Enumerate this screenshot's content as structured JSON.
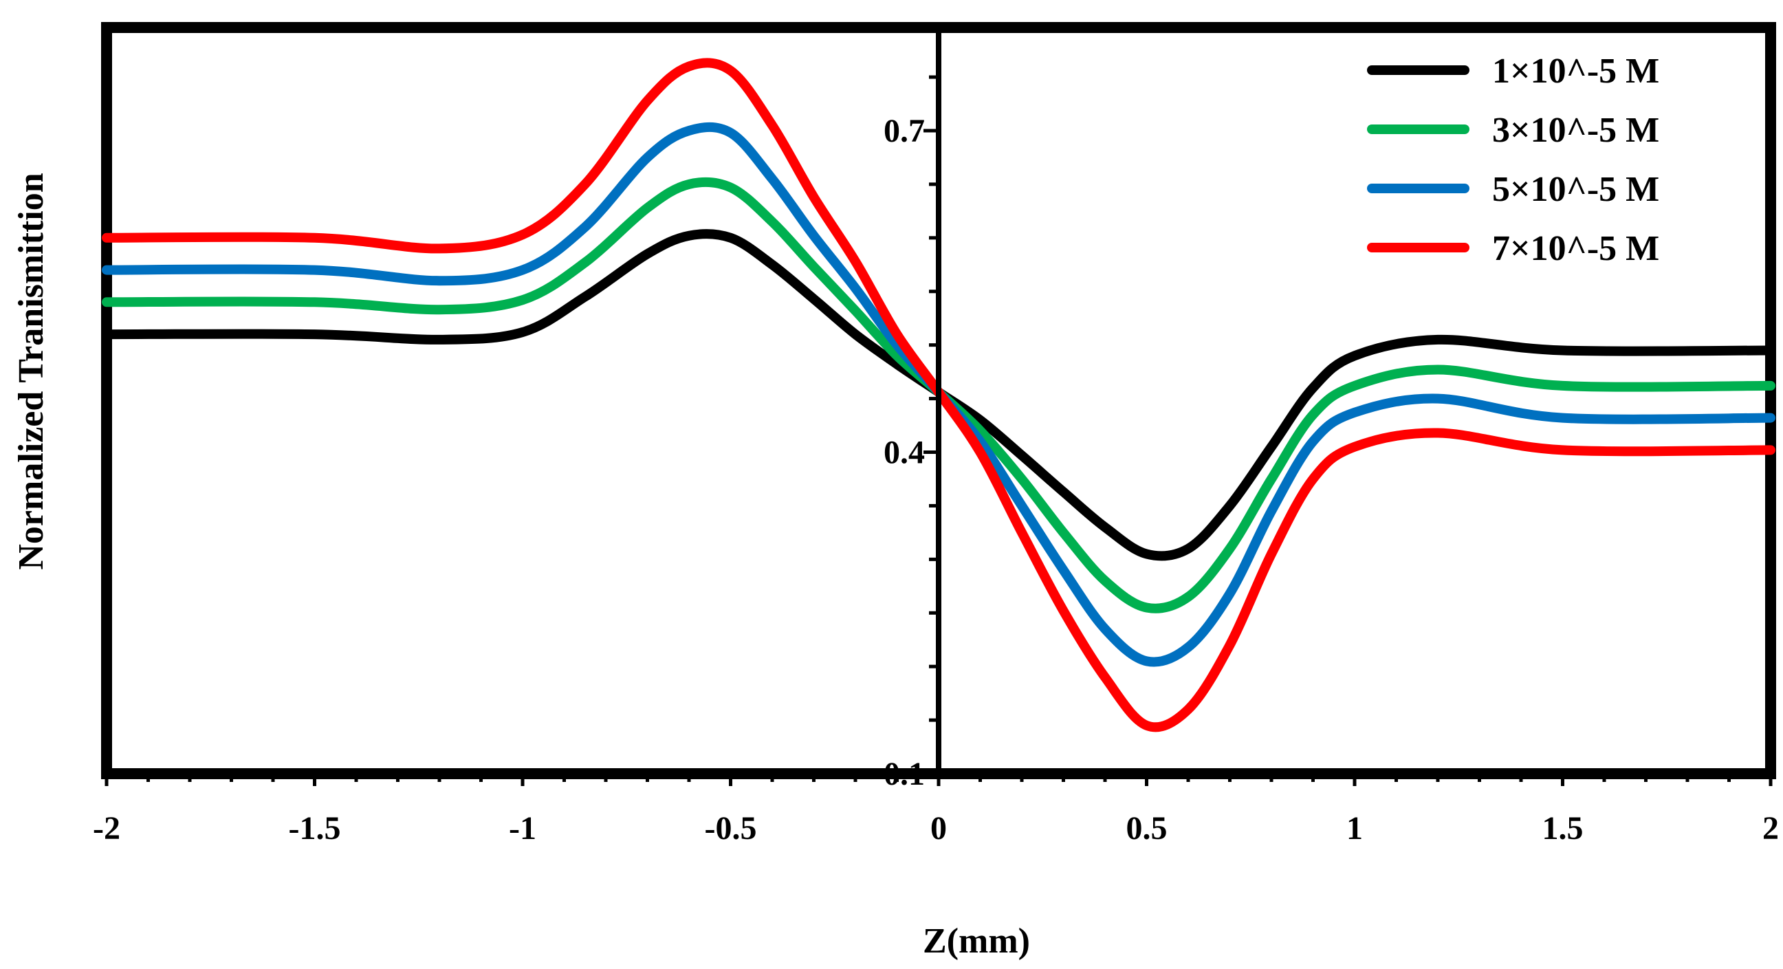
{
  "chart_data": {
    "type": "line",
    "title": "",
    "xlabel": "Z(mm)",
    "ylabel": "Normalized Tranismittion",
    "xlim": [
      -2,
      2
    ],
    "ylim": [
      0.1,
      0.8
    ],
    "x_ticks": [
      -2,
      -1.5,
      -1,
      -0.5,
      0,
      0.5,
      1,
      1.5,
      2
    ],
    "x_tick_labels": [
      "-2",
      "-1.5",
      "-1",
      "-0.5",
      "0",
      "0.5",
      "1",
      "1.5",
      "2"
    ],
    "y_ticks": [
      0.1,
      0.4,
      0.7
    ],
    "y_tick_labels": [
      "0.1",
      "0.4",
      "0.7"
    ],
    "grid": false,
    "legend_position": "top-right",
    "x": [
      -2,
      -1.5,
      -1.2,
      -1,
      -0.85,
      -0.7,
      -0.6,
      -0.5,
      -0.4,
      -0.3,
      -0.2,
      -0.1,
      0,
      0.1,
      0.2,
      0.3,
      0.4,
      0.5,
      0.6,
      0.7,
      0.8,
      0.9,
      1,
      1.2,
      1.5,
      2
    ],
    "series": [
      {
        "name": "1×10^-5 M",
        "color": "#000000",
        "values": [
          0.51,
          0.51,
          0.505,
          0.512,
          0.545,
          0.585,
          0.602,
          0.6,
          0.575,
          0.543,
          0.51,
          0.482,
          0.456,
          0.43,
          0.397,
          0.363,
          0.33,
          0.305,
          0.31,
          0.35,
          0.405,
          0.46,
          0.49,
          0.505,
          0.495,
          0.495
        ]
      },
      {
        "name": "3×10^-5 M",
        "color": "#00b050",
        "values": [
          0.54,
          0.54,
          0.533,
          0.542,
          0.577,
          0.628,
          0.65,
          0.647,
          0.615,
          0.573,
          0.532,
          0.49,
          0.456,
          0.42,
          0.375,
          0.325,
          0.28,
          0.255,
          0.265,
          0.31,
          0.375,
          0.435,
          0.462,
          0.477,
          0.462,
          0.462
        ]
      },
      {
        "name": "5×10^-5 M",
        "color": "#0070c0",
        "values": [
          0.57,
          0.57,
          0.56,
          0.57,
          0.61,
          0.675,
          0.7,
          0.698,
          0.655,
          0.602,
          0.553,
          0.5,
          0.456,
          0.41,
          0.35,
          0.29,
          0.235,
          0.205,
          0.218,
          0.268,
          0.345,
          0.41,
          0.437,
          0.45,
          0.432,
          0.432
        ]
      },
      {
        "name": "7×10^-5 M",
        "color": "#ff0000",
        "values": [
          0.6,
          0.6,
          0.59,
          0.603,
          0.65,
          0.728,
          0.76,
          0.756,
          0.705,
          0.638,
          0.578,
          0.51,
          0.456,
          0.4,
          0.325,
          0.252,
          0.19,
          0.145,
          0.16,
          0.22,
          0.305,
          0.375,
          0.405,
          0.418,
          0.402,
          0.402
        ]
      }
    ]
  }
}
